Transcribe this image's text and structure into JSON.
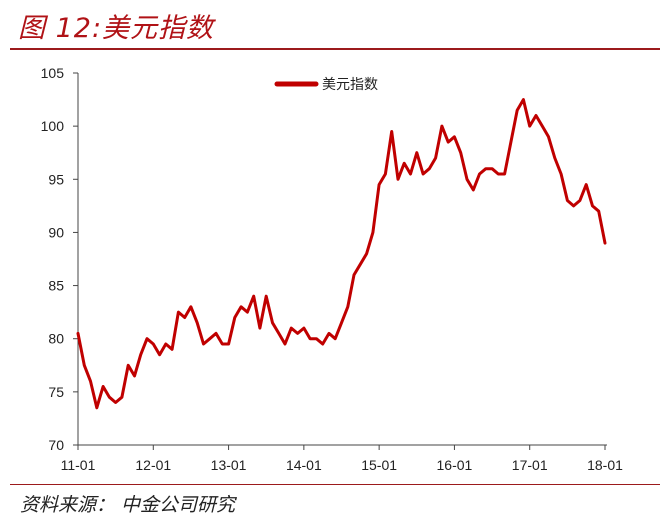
{
  "header": {
    "figure_title": "图 12:美元指数"
  },
  "footer": {
    "source": "资料来源：  中金公司研究"
  },
  "colors": {
    "accent": "#b01216",
    "series": "#c00000",
    "rule": "#9c1a1c"
  },
  "chart_data": {
    "type": "line",
    "title": "",
    "xlabel": "",
    "ylabel": "",
    "ylim": [
      70,
      105
    ],
    "yticks": [
      70,
      75,
      80,
      85,
      90,
      95,
      100,
      105
    ],
    "xlim": [
      "2011-01",
      "2018-01"
    ],
    "xtick_labels": [
      "11-01",
      "12-01",
      "13-01",
      "14-01",
      "15-01",
      "16-01",
      "17-01",
      "18-01"
    ],
    "grid": false,
    "legend": {
      "position": "top-center"
    },
    "series": [
      {
        "name": "美元指数",
        "x": [
          "2011-01",
          "2011-02",
          "2011-03",
          "2011-04",
          "2011-05",
          "2011-06",
          "2011-07",
          "2011-08",
          "2011-09",
          "2011-10",
          "2011-11",
          "2011-12",
          "2012-01",
          "2012-02",
          "2012-03",
          "2012-04",
          "2012-05",
          "2012-06",
          "2012-07",
          "2012-08",
          "2012-09",
          "2012-10",
          "2012-11",
          "2012-12",
          "2013-01",
          "2013-02",
          "2013-03",
          "2013-04",
          "2013-05",
          "2013-06",
          "2013-07",
          "2013-08",
          "2013-09",
          "2013-10",
          "2013-11",
          "2013-12",
          "2014-01",
          "2014-02",
          "2014-03",
          "2014-04",
          "2014-05",
          "2014-06",
          "2014-07",
          "2014-08",
          "2014-09",
          "2014-10",
          "2014-11",
          "2014-12",
          "2015-01",
          "2015-02",
          "2015-03",
          "2015-04",
          "2015-05",
          "2015-06",
          "2015-07",
          "2015-08",
          "2015-09",
          "2015-10",
          "2015-11",
          "2015-12",
          "2016-01",
          "2016-02",
          "2016-03",
          "2016-04",
          "2016-05",
          "2016-06",
          "2016-07",
          "2016-08",
          "2016-09",
          "2016-10",
          "2016-11",
          "2016-12",
          "2017-01",
          "2017-02",
          "2017-03",
          "2017-04",
          "2017-05",
          "2017-06",
          "2017-07",
          "2017-08",
          "2017-09",
          "2017-10",
          "2017-11",
          "2017-12",
          "2018-01"
        ],
        "values": [
          80.5,
          77.5,
          76.0,
          73.5,
          75.5,
          74.5,
          74.0,
          74.5,
          77.5,
          76.5,
          78.5,
          80.0,
          79.5,
          78.5,
          79.5,
          79.0,
          82.5,
          82.0,
          83.0,
          81.5,
          79.5,
          80.0,
          80.5,
          79.5,
          79.5,
          82.0,
          83.0,
          82.5,
          84.0,
          81.0,
          84.0,
          81.5,
          80.5,
          79.5,
          81.0,
          80.5,
          81.0,
          80.0,
          80.0,
          79.5,
          80.5,
          80.0,
          81.5,
          83.0,
          86.0,
          87.0,
          88.0,
          90.0,
          94.5,
          95.5,
          99.5,
          95.0,
          96.5,
          95.5,
          97.5,
          95.5,
          96.0,
          97.0,
          100.0,
          98.5,
          99.0,
          97.5,
          95.0,
          94.0,
          95.5,
          96.0,
          96.0,
          95.5,
          95.5,
          98.5,
          101.5,
          102.5,
          100.0,
          101.0,
          100.0,
          99.0,
          97.0,
          95.5,
          93.0,
          92.5,
          93.0,
          94.5,
          92.5,
          92.0,
          89.0
        ]
      }
    ]
  }
}
